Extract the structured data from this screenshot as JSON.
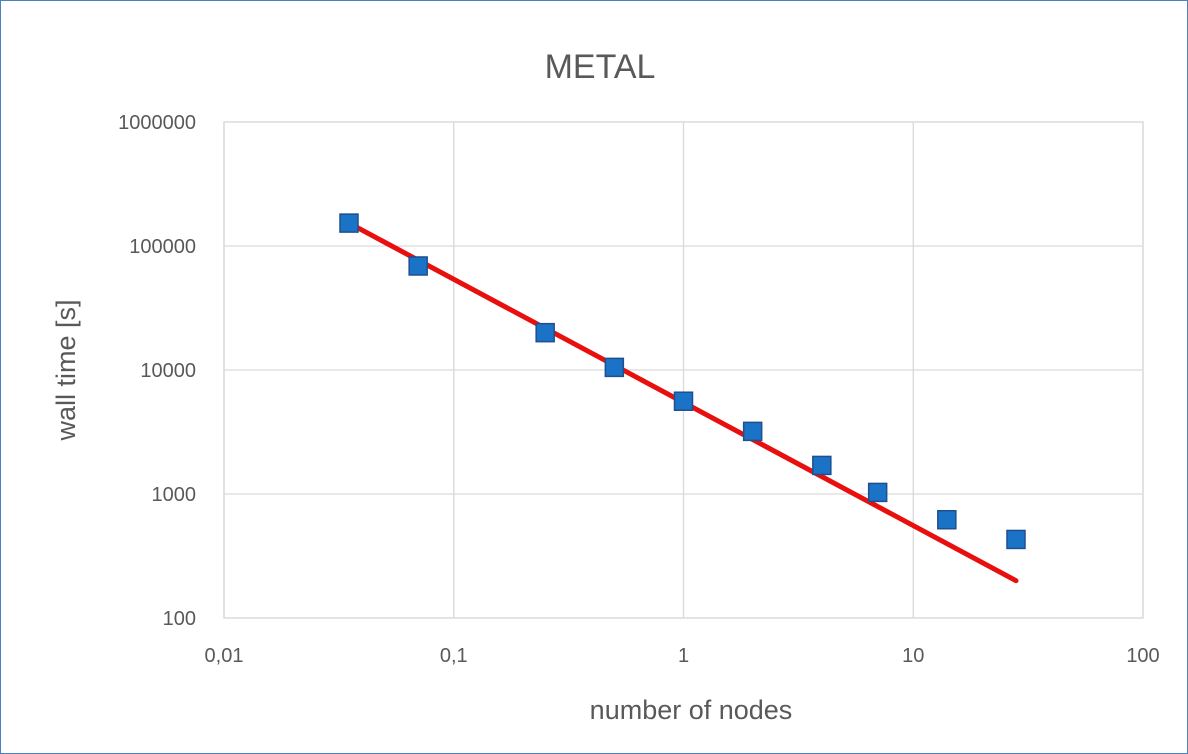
{
  "chart_data": {
    "type": "scatter",
    "title": "METAL",
    "xlabel": "number of nodes",
    "ylabel": "wall time [s]",
    "x_scale": "log",
    "y_scale": "log",
    "xlim": [
      0.01,
      100
    ],
    "ylim": [
      100,
      1000000
    ],
    "x_ticks": [
      {
        "value": 0.01,
        "label": "0,01"
      },
      {
        "value": 0.1,
        "label": "0,1"
      },
      {
        "value": 1,
        "label": "1"
      },
      {
        "value": 10,
        "label": "10"
      },
      {
        "value": 100,
        "label": "100"
      }
    ],
    "y_ticks": [
      {
        "value": 100,
        "label": "100"
      },
      {
        "value": 1000,
        "label": "1000"
      },
      {
        "value": 10000,
        "label": "10000"
      },
      {
        "value": 100000,
        "label": "100000"
      },
      {
        "value": 1000000,
        "label": "1000000"
      }
    ],
    "grid": true,
    "series": [
      {
        "marker_color": "#1a73c7",
        "points": [
          {
            "x": 0.035,
            "y": 153000
          },
          {
            "x": 0.07,
            "y": 69000
          },
          {
            "x": 0.25,
            "y": 20000
          },
          {
            "x": 0.5,
            "y": 10500
          },
          {
            "x": 1,
            "y": 5600
          },
          {
            "x": 2,
            "y": 3200
          },
          {
            "x": 4,
            "y": 1700
          },
          {
            "x": 7,
            "y": 1030
          },
          {
            "x": 14,
            "y": 620
          },
          {
            "x": 28,
            "y": 430
          }
        ]
      }
    ],
    "trendline": {
      "color": "#e8100f",
      "points": [
        {
          "x": 0.035,
          "y": 153000
        },
        {
          "x": 28,
          "y": 200
        }
      ]
    }
  }
}
